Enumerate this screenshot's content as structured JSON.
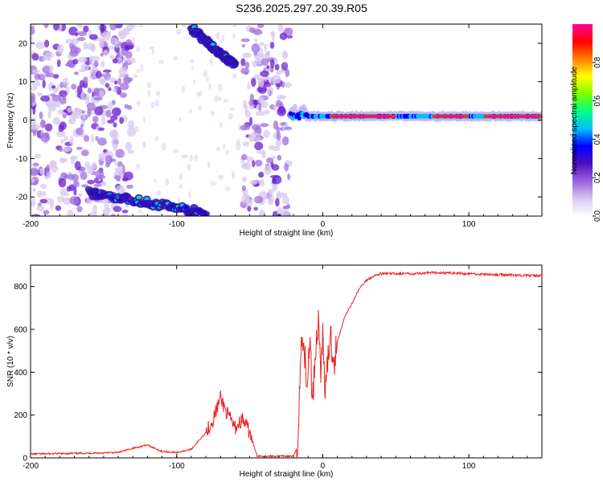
{
  "title": "S236.2025.297.20.39.R05",
  "chart_data": [
    {
      "type": "heatmap",
      "title": "S236.2025.297.20.39.R05",
      "xlabel": "Height of straight line (km)",
      "ylabel": "Frequency (Hz)",
      "xlim": [
        -200,
        150
      ],
      "ylim": [
        -25,
        25
      ],
      "xticks": [
        -200,
        -100,
        0,
        100
      ],
      "yticks": [
        -20,
        -10,
        0,
        10,
        20
      ],
      "colorbar": {
        "label": "Normalized spectral amplitude",
        "range": [
          0,
          1
        ],
        "ticks": [
          "0.0",
          "0.2",
          "0.4",
          "0.6",
          "0.8"
        ],
        "colors": [
          "#ffffff",
          "#d8c8f0",
          "#9a60e0",
          "#5010c0",
          "#0000ff",
          "#00c0ff",
          "#00ff80",
          "#80ff00",
          "#ffff00",
          "#ff8000",
          "#ff0000",
          "#ff00a0"
        ]
      },
      "features": [
        {
          "name": "scattered noise",
          "x": [
            -200,
            -130
          ],
          "y": [
            -25,
            25
          ],
          "amplitude": 0.1
        },
        {
          "name": "noise band",
          "x": [
            -55,
            -22
          ],
          "y": [
            -25,
            25
          ],
          "amplitude": 0.1
        },
        {
          "name": "upper diagonal arc",
          "x": [
            -90,
            -60
          ],
          "y_start": 24,
          "y_end": 14,
          "amplitude": 0.35
        },
        {
          "name": "lower diagonal arc",
          "x": [
            -160,
            -80
          ],
          "y_start": -19,
          "y_end": -24,
          "amplitude": 0.35
        },
        {
          "name": "dominant line near 0 Hz",
          "x": [
            -22,
            150
          ],
          "y": 1,
          "amplitude": 1.0
        }
      ]
    },
    {
      "type": "line",
      "xlabel": "Height of straight line (km)",
      "ylabel": "SNR (10 * v/v)",
      "xlim": [
        -200,
        150
      ],
      "ylim": [
        0,
        900
      ],
      "xticks": [
        -200,
        -100,
        0,
        100
      ],
      "yticks": [
        0,
        200,
        400,
        600,
        800
      ],
      "color": "#ee2222",
      "series": [
        {
          "name": "SNR",
          "x": [
            -200,
            -180,
            -160,
            -140,
            -130,
            -120,
            -110,
            -100,
            -90,
            -80,
            -75,
            -70,
            -65,
            -60,
            -55,
            -50,
            -45,
            -40,
            -35,
            -30,
            -25,
            -20,
            -17,
            -15,
            -13,
            -11,
            -9,
            -7,
            -5,
            -3,
            -1,
            0,
            2,
            5,
            8,
            10,
            15,
            20,
            25,
            30,
            35,
            40,
            50,
            60,
            80,
            100,
            120,
            150
          ],
          "values": [
            18,
            20,
            22,
            25,
            45,
            60,
            30,
            25,
            40,
            120,
            180,
            280,
            200,
            140,
            180,
            120,
            10,
            8,
            8,
            8,
            8,
            8,
            60,
            500,
            580,
            300,
            560,
            280,
            500,
            640,
            400,
            560,
            300,
            580,
            460,
            540,
            660,
            720,
            790,
            830,
            850,
            860,
            860,
            860,
            865,
            860,
            855,
            850
          ]
        }
      ]
    }
  ]
}
